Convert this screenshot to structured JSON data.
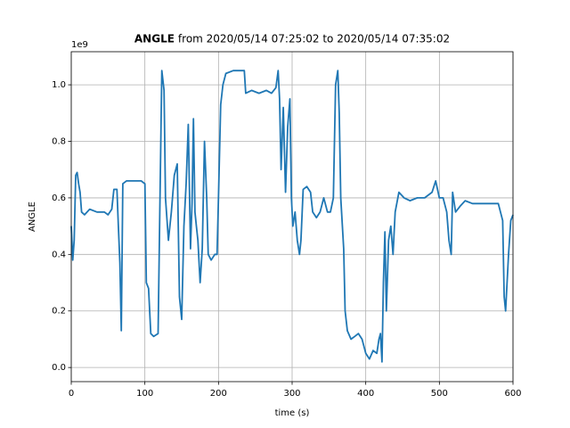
{
  "chart_data": {
    "type": "line",
    "title_bold": "ANGLE",
    "title": "from 2020/05/14 07:25:02 to 2020/05/14 07:35:02",
    "xlabel": "time (s)",
    "ylabel": "ANGLE",
    "y_offset_label": "1e9",
    "xlim": [
      0,
      600
    ],
    "xticks": [
      0,
      100,
      200,
      300,
      400,
      500,
      600
    ],
    "ylim": [
      -0.05,
      1.117
    ],
    "yticks": [
      {
        "value": 0,
        "label": "0.0"
      },
      {
        "value": 0.2,
        "label": "0.2"
      },
      {
        "value": 0.4,
        "label": "0.4"
      },
      {
        "value": 0.6,
        "label": "0.6"
      },
      {
        "value": 0.8,
        "label": "0.8"
      },
      {
        "value": 1,
        "label": "1.0"
      }
    ],
    "grid": true,
    "series": [
      {
        "name": "ANGLE",
        "color": "#1f77b4",
        "x": [
          0,
          2,
          4,
          6,
          8,
          10,
          12,
          14,
          18,
          25,
          35,
          45,
          50,
          55,
          58,
          62,
          64,
          66,
          68,
          70,
          75,
          85,
          95,
          100,
          102,
          105,
          108,
          112,
          118,
          120,
          123,
          126,
          128,
          132,
          136,
          140,
          144,
          147,
          150,
          153,
          156,
          159,
          162,
          164,
          166,
          168,
          170,
          172,
          175,
          178,
          181,
          184,
          186,
          190,
          195,
          198,
          200,
          203,
          206,
          210,
          220,
          230,
          235,
          237,
          245,
          255,
          265,
          272,
          278,
          281,
          283,
          285,
          288,
          291,
          294,
          297,
          299,
          301,
          304,
          307,
          310,
          312,
          315,
          320,
          325,
          328,
          333,
          338,
          343,
          348,
          352,
          356,
          359,
          362,
          364,
          366,
          370,
          372,
          375,
          380,
          385,
          390,
          395,
          400,
          405,
          410,
          415,
          418,
          420,
          422,
          424,
          426,
          428,
          431,
          434,
          437,
          440,
          445,
          452,
          460,
          470,
          480,
          490,
          495,
          500,
          505,
          510,
          513,
          516,
          518,
          522,
          528,
          535,
          545,
          560,
          580,
          586,
          588,
          590,
          594,
          597,
          600
        ],
        "values": [
          0.5,
          0.38,
          0.45,
          0.68,
          0.69,
          0.65,
          0.62,
          0.55,
          0.54,
          0.56,
          0.55,
          0.55,
          0.54,
          0.56,
          0.63,
          0.63,
          0.5,
          0.37,
          0.13,
          0.65,
          0.66,
          0.66,
          0.66,
          0.65,
          0.3,
          0.28,
          0.12,
          0.11,
          0.12,
          0.5,
          1.05,
          0.98,
          0.6,
          0.45,
          0.55,
          0.68,
          0.72,
          0.25,
          0.17,
          0.5,
          0.65,
          0.86,
          0.42,
          0.58,
          0.88,
          0.55,
          0.5,
          0.45,
          0.3,
          0.42,
          0.8,
          0.6,
          0.4,
          0.38,
          0.4,
          0.4,
          0.6,
          0.93,
          1.0,
          1.04,
          1.05,
          1.05,
          1.05,
          0.97,
          0.98,
          0.97,
          0.98,
          0.97,
          0.99,
          1.05,
          0.95,
          0.7,
          0.92,
          0.62,
          0.85,
          0.95,
          0.6,
          0.5,
          0.55,
          0.45,
          0.4,
          0.45,
          0.63,
          0.64,
          0.62,
          0.55,
          0.53,
          0.55,
          0.6,
          0.55,
          0.55,
          0.6,
          1.0,
          1.05,
          0.9,
          0.6,
          0.42,
          0.2,
          0.13,
          0.1,
          0.11,
          0.12,
          0.1,
          0.05,
          0.03,
          0.06,
          0.05,
          0.1,
          0.12,
          0.02,
          0.3,
          0.48,
          0.2,
          0.45,
          0.5,
          0.4,
          0.55,
          0.62,
          0.6,
          0.59,
          0.6,
          0.6,
          0.62,
          0.66,
          0.6,
          0.6,
          0.55,
          0.45,
          0.4,
          0.62,
          0.55,
          0.57,
          0.59,
          0.58,
          0.58,
          0.58,
          0.52,
          0.25,
          0.2,
          0.4,
          0.52,
          0.54
        ]
      }
    ]
  }
}
